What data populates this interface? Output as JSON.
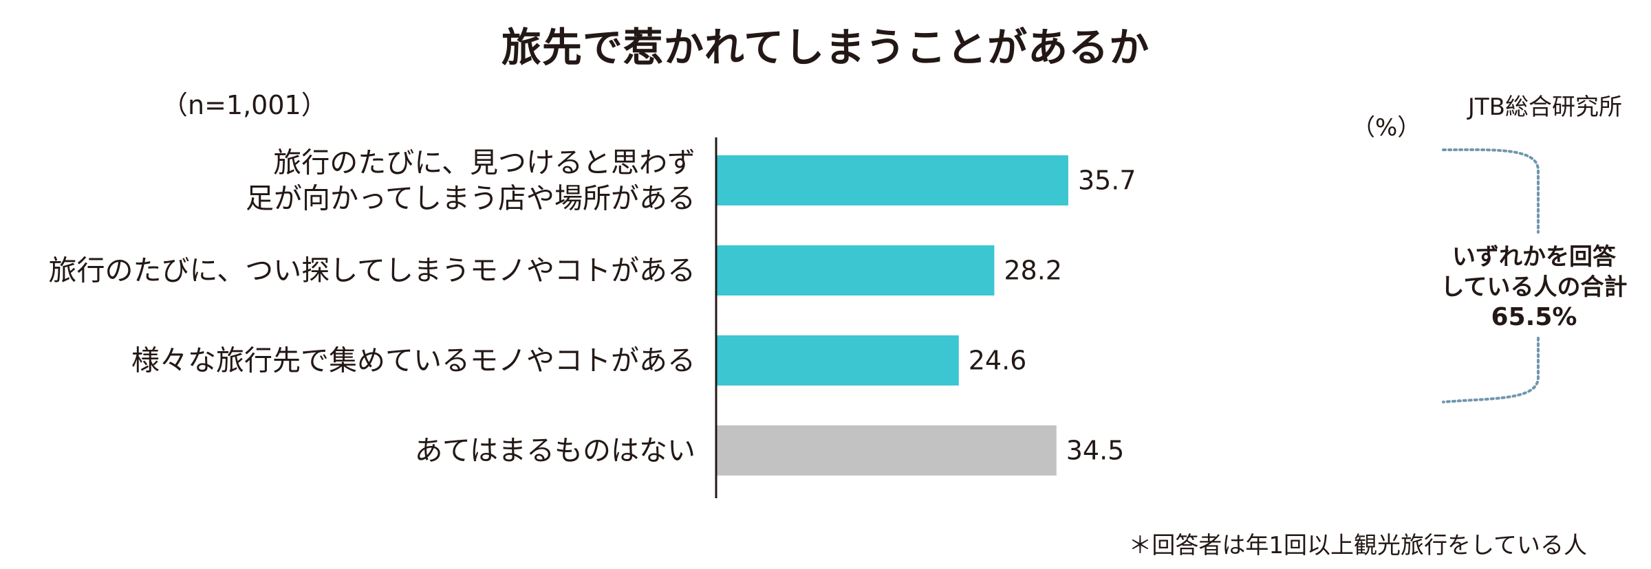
{
  "title": "旅先で惹かれてしまうことがあるか",
  "sample_size": "（n=1,001）",
  "source": "JTB総合研究所",
  "unit": "（%）",
  "footnote": "＊回答者は年1回以上観光旅行をしている人",
  "callout": {
    "line1": "いずれかを回答",
    "line2": "している人の合計",
    "total": "65.5%"
  },
  "colors": {
    "bar_primary": "#3cc6d1",
    "bar_none": "#c2c2c2",
    "bracket": "#6f97ad",
    "axis": "#231815"
  },
  "chart_data": {
    "type": "bar",
    "orientation": "horizontal",
    "title": "旅先で惹かれてしまうことがあるか",
    "unit": "%",
    "xlim": [
      0,
      40
    ],
    "grid": false,
    "legend": "none",
    "categories": [
      [
        "旅行のたびに、見つけると思わず",
        "足が向かってしまう店や場所がある"
      ],
      [
        "旅行のたびに、つい探してしまうモノやコトがある"
      ],
      [
        "様々な旅行先で集めているモノやコトがある"
      ],
      [
        "あてはまるものはない"
      ]
    ],
    "values": [
      35.7,
      28.2,
      24.6,
      34.5
    ],
    "value_labels": [
      "35.7",
      "28.2",
      "24.6",
      "34.5"
    ],
    "bar_colors": [
      "#3cc6d1",
      "#3cc6d1",
      "#3cc6d1",
      "#c2c2c2"
    ],
    "bracket_spans_bars": [
      0,
      2
    ],
    "bracket_label": "いずれかを回答している人の合計 65.5%"
  }
}
